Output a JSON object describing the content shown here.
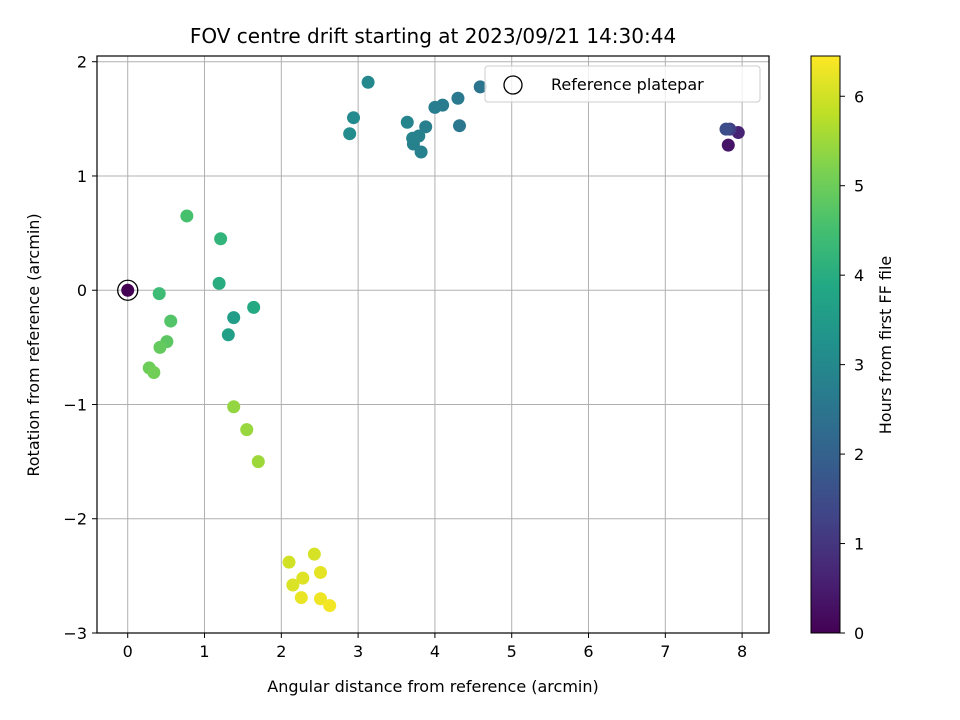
{
  "chart_data": {
    "type": "scatter",
    "title": "FOV centre drift starting at 2023/09/21 14:30:44",
    "xlabel": "Angular distance from reference (arcmin)",
    "ylabel": "Rotation from reference (arcmin)",
    "xlim": [
      -0.4,
      8.35
    ],
    "ylim": [
      -3,
      2.05
    ],
    "xticks": [
      0,
      1,
      2,
      3,
      4,
      5,
      6,
      7,
      8
    ],
    "yticks": [
      -3,
      -2,
      -1,
      0,
      1,
      2
    ],
    "grid": true,
    "legend": {
      "position": "top-right",
      "entries": [
        "Reference platepar"
      ]
    },
    "colorbar": {
      "label": "Hours from first FF file",
      "range": [
        0,
        6.45
      ],
      "ticks": [
        0,
        1,
        2,
        3,
        4,
        5,
        6
      ],
      "colormap": "viridis"
    },
    "points": [
      {
        "x": 0.0,
        "y": 0.0,
        "c": 0.0
      },
      {
        "x": 7.82,
        "y": 1.27,
        "c": 0.35
      },
      {
        "x": 7.95,
        "y": 1.38,
        "c": 0.65
      },
      {
        "x": 7.84,
        "y": 1.41,
        "c": 1.2
      },
      {
        "x": 7.79,
        "y": 1.41,
        "c": 1.5
      },
      {
        "x": 4.59,
        "y": 1.78,
        "c": 2.45
      },
      {
        "x": 4.32,
        "y": 1.44,
        "c": 2.55
      },
      {
        "x": 4.3,
        "y": 1.68,
        "c": 2.6
      },
      {
        "x": 4.1,
        "y": 1.62,
        "c": 2.65
      },
      {
        "x": 4.0,
        "y": 1.6,
        "c": 2.7
      },
      {
        "x": 3.88,
        "y": 1.43,
        "c": 2.75
      },
      {
        "x": 3.82,
        "y": 1.21,
        "c": 2.78
      },
      {
        "x": 3.79,
        "y": 1.35,
        "c": 2.8
      },
      {
        "x": 3.72,
        "y": 1.28,
        "c": 2.82
      },
      {
        "x": 3.71,
        "y": 1.33,
        "c": 2.85
      },
      {
        "x": 3.64,
        "y": 1.47,
        "c": 2.9
      },
      {
        "x": 3.13,
        "y": 1.82,
        "c": 3.0
      },
      {
        "x": 2.94,
        "y": 1.51,
        "c": 3.05
      },
      {
        "x": 2.89,
        "y": 1.37,
        "c": 3.1
      },
      {
        "x": 1.38,
        "y": -0.24,
        "c": 3.55
      },
      {
        "x": 1.31,
        "y": -0.39,
        "c": 3.65
      },
      {
        "x": 1.64,
        "y": -0.15,
        "c": 3.9
      },
      {
        "x": 1.19,
        "y": 0.06,
        "c": 4.0
      },
      {
        "x": 1.21,
        "y": 0.45,
        "c": 4.2
      },
      {
        "x": 0.41,
        "y": -0.03,
        "c": 4.4
      },
      {
        "x": 0.77,
        "y": 0.65,
        "c": 4.55
      },
      {
        "x": 0.56,
        "y": -0.27,
        "c": 4.7
      },
      {
        "x": 0.51,
        "y": -0.45,
        "c": 4.8
      },
      {
        "x": 0.42,
        "y": -0.5,
        "c": 4.9
      },
      {
        "x": 0.28,
        "y": -0.68,
        "c": 5.0
      },
      {
        "x": 0.34,
        "y": -0.72,
        "c": 5.05
      },
      {
        "x": 1.38,
        "y": -1.02,
        "c": 5.4
      },
      {
        "x": 1.55,
        "y": -1.22,
        "c": 5.45
      },
      {
        "x": 1.7,
        "y": -1.5,
        "c": 5.5
      },
      {
        "x": 2.1,
        "y": -2.38,
        "c": 6.0
      },
      {
        "x": 2.43,
        "y": -2.31,
        "c": 6.05
      },
      {
        "x": 2.15,
        "y": -2.58,
        "c": 6.1
      },
      {
        "x": 2.28,
        "y": -2.52,
        "c": 6.15
      },
      {
        "x": 2.51,
        "y": -2.47,
        "c": 6.2
      },
      {
        "x": 2.26,
        "y": -2.69,
        "c": 6.25
      },
      {
        "x": 2.51,
        "y": -2.7,
        "c": 6.3
      },
      {
        "x": 2.63,
        "y": -2.76,
        "c": 6.35
      }
    ],
    "reference_point": {
      "x": 0.0,
      "y": 0.0
    }
  }
}
